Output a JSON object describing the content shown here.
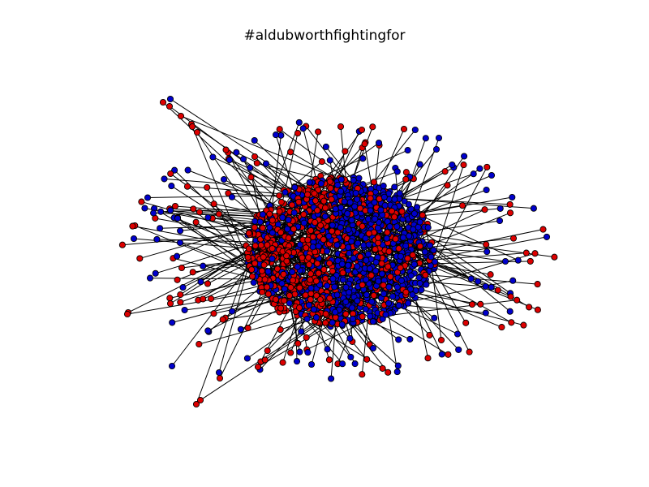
{
  "title": "#aldubworthfightingfor",
  "colors": {
    "node_red": "#dd0000",
    "node_blue": "#0000cc",
    "edge": "#000000",
    "node_stroke": "#000000"
  }
}
